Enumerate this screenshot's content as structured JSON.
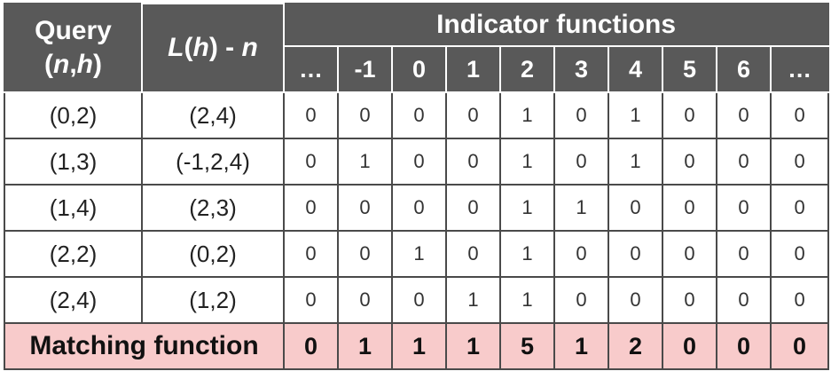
{
  "header": {
    "query_line1": "Query",
    "query_line2_open": "(",
    "query_n": "n",
    "query_comma": ",",
    "query_h": "h",
    "query_line2_close": ")",
    "lh_L": "L",
    "lh_open": "(",
    "lh_h": "h",
    "lh_close": ")",
    "lh_minus": " - ",
    "lh_n": "n",
    "indicator_title": "Indicator functions",
    "columns": [
      "…",
      "-1",
      "0",
      "1",
      "2",
      "3",
      "4",
      "5",
      "6",
      "…"
    ]
  },
  "rows": [
    {
      "query": "(0,2)",
      "lh": "(2,4)",
      "values": [
        "0",
        "0",
        "0",
        "0",
        "1",
        "0",
        "1",
        "0",
        "0",
        "0"
      ]
    },
    {
      "query": "(1,3)",
      "lh": "(-1,2,4)",
      "values": [
        "0",
        "1",
        "0",
        "0",
        "1",
        "0",
        "1",
        "0",
        "0",
        "0"
      ]
    },
    {
      "query": "(1,4)",
      "lh": "(2,3)",
      "values": [
        "0",
        "0",
        "0",
        "0",
        "1",
        "1",
        "0",
        "0",
        "0",
        "0"
      ]
    },
    {
      "query": "(2,2)",
      "lh": "(0,2)",
      "values": [
        "0",
        "0",
        "1",
        "0",
        "1",
        "0",
        "0",
        "0",
        "0",
        "0"
      ]
    },
    {
      "query": "(2,4)",
      "lh": "(1,2)",
      "values": [
        "0",
        "0",
        "0",
        "1",
        "1",
        "0",
        "0",
        "0",
        "0",
        "0"
      ]
    }
  ],
  "matching": {
    "label": "Matching function",
    "values": [
      "0",
      "1",
      "1",
      "1",
      "5",
      "1",
      "2",
      "0",
      "0",
      "0"
    ]
  },
  "colors": {
    "header_bg": "#595959",
    "match_bg": "#f8cbcb",
    "border": "#4a4a4a"
  }
}
